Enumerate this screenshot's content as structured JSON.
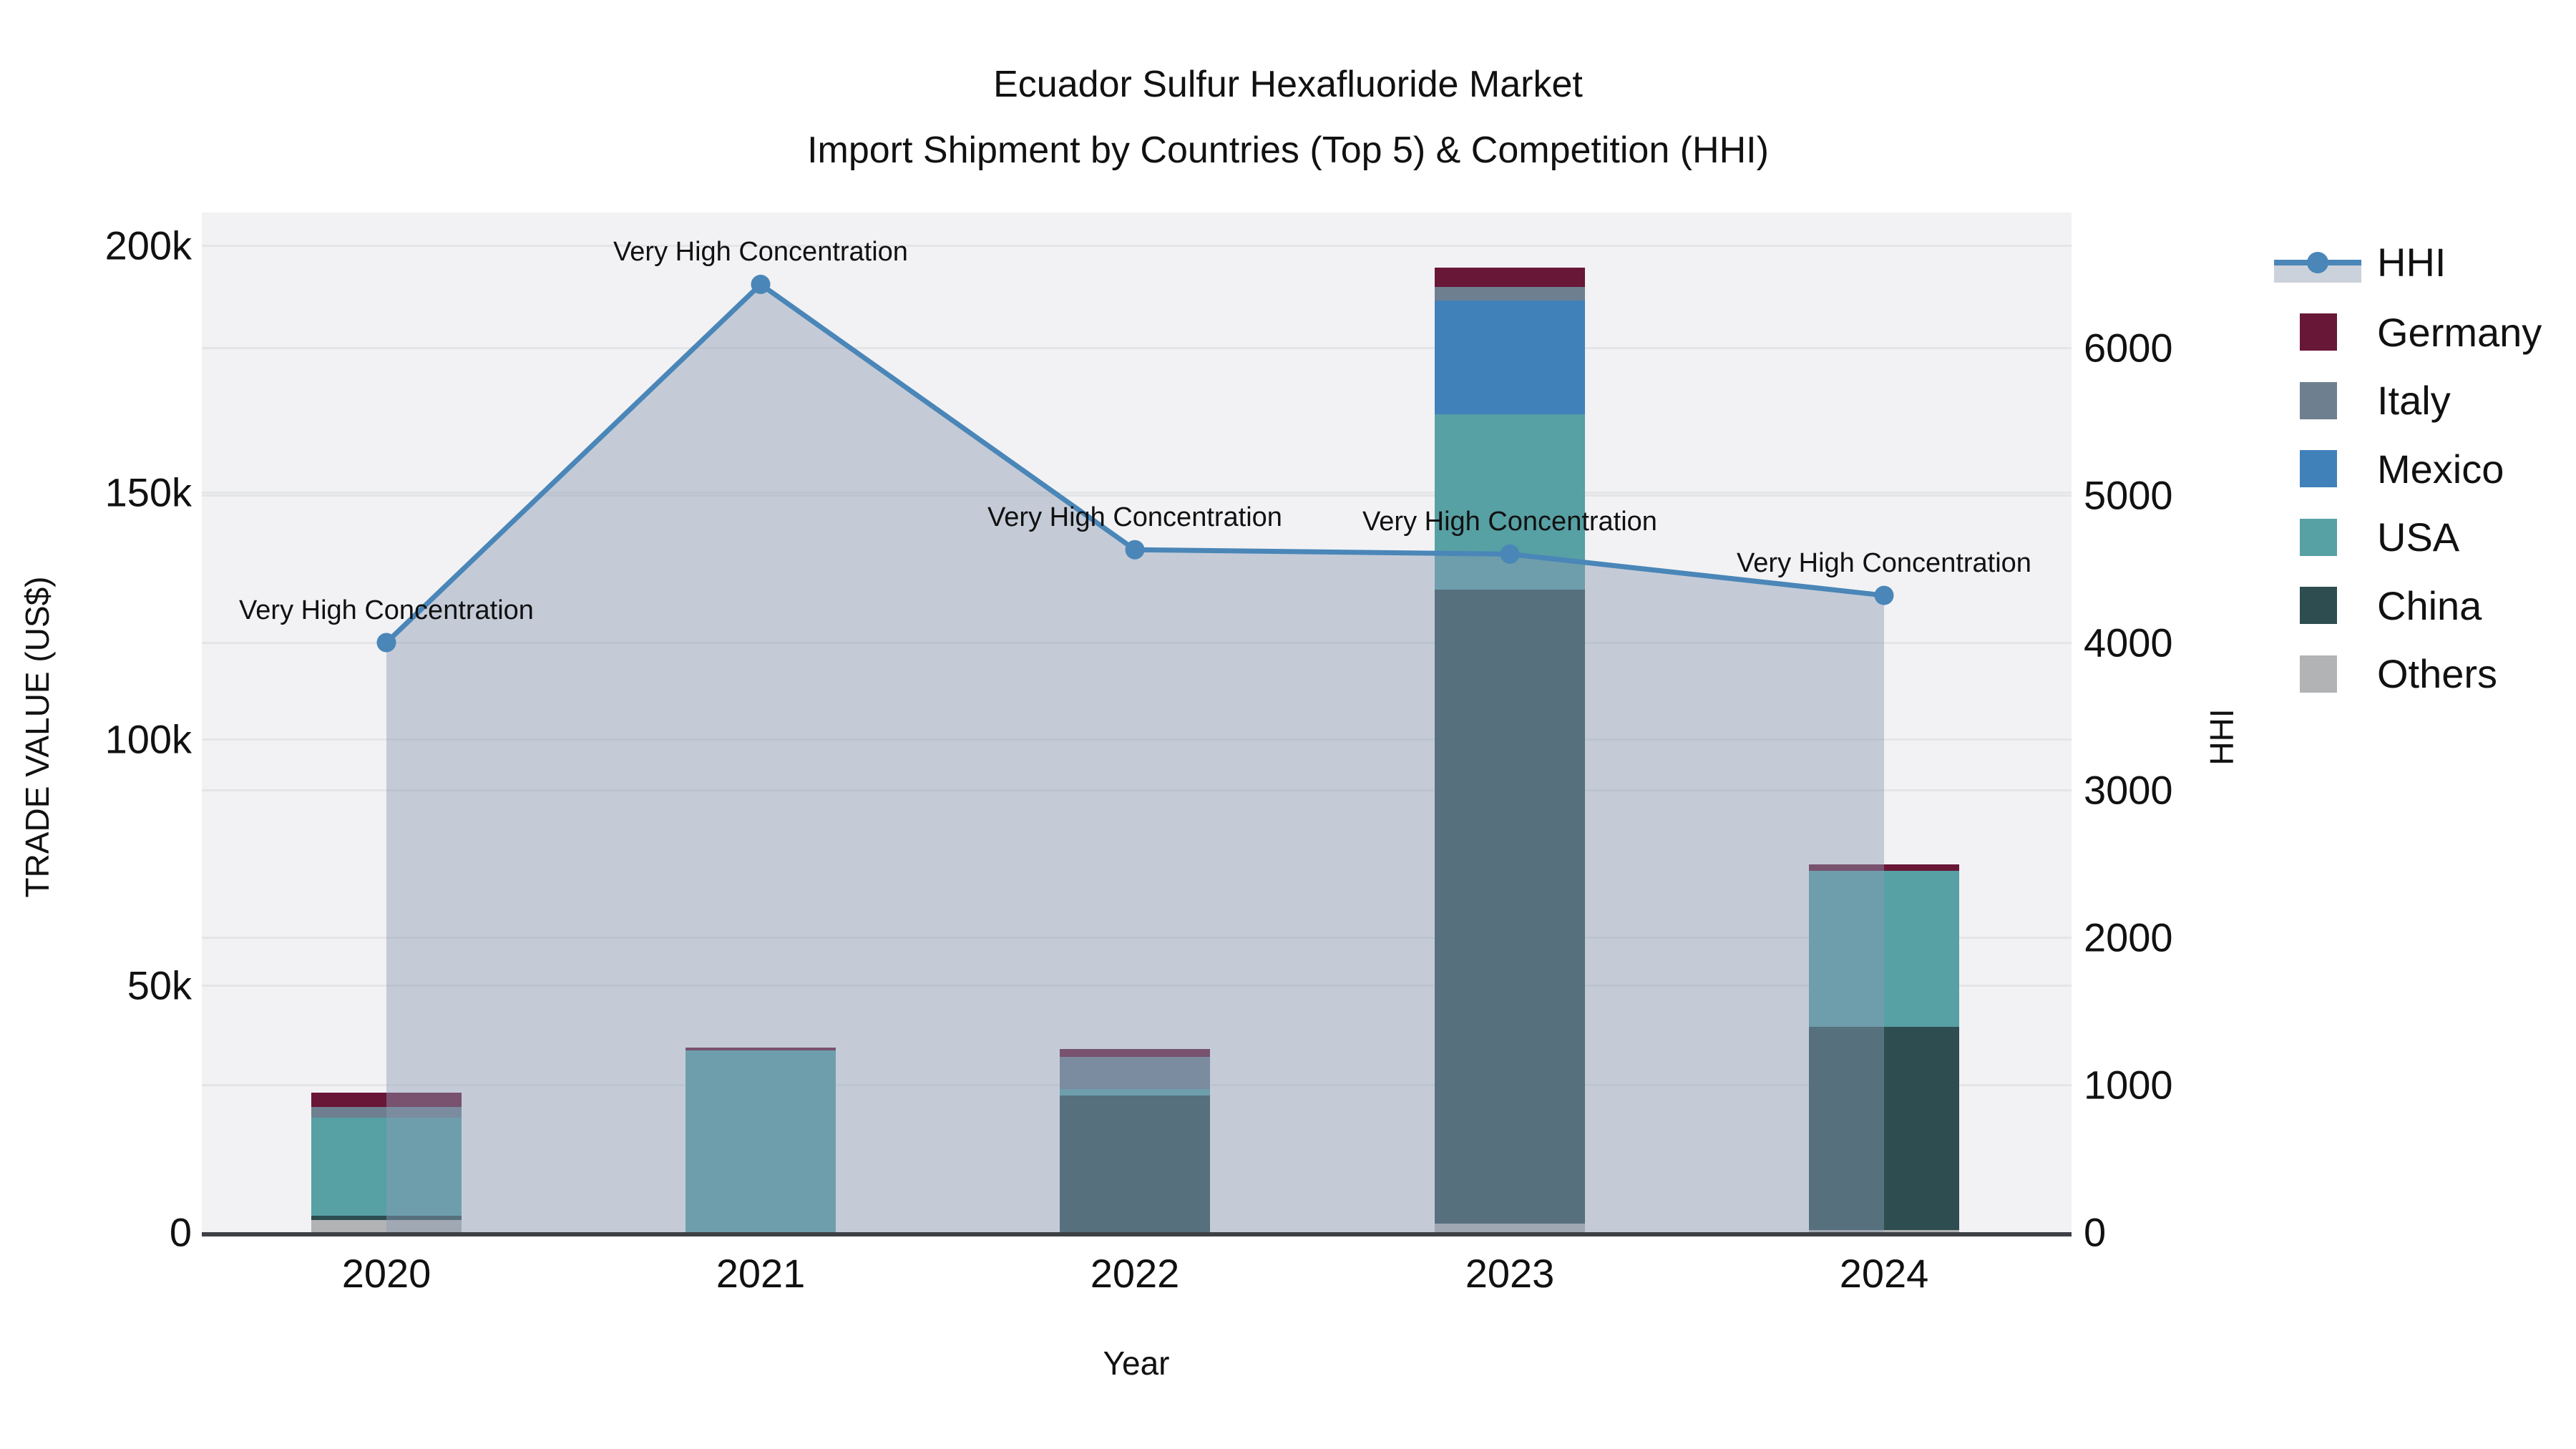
{
  "title": {
    "line1": "Ecuador Sulfur Hexafluoride Market",
    "line2": "Import Shipment by Countries (Top 5) & Competition (HHI)"
  },
  "axes": {
    "x_title": "Year",
    "y_left_title": "TRADE VALUE (US$)",
    "y_right_title": "HHI",
    "x_tick_labels": [
      "2020",
      "2021",
      "2022",
      "2023",
      "2024"
    ],
    "y_left_tick_labels": [
      "0",
      "50k",
      "100k",
      "150k",
      "200k"
    ],
    "y_left_tick_values": [
      0,
      50000,
      100000,
      150000,
      200000
    ],
    "y_right_tick_labels": [
      "0",
      "1000",
      "2000",
      "3000",
      "4000",
      "5000",
      "6000"
    ],
    "y_right_tick_values": [
      0,
      1000,
      2000,
      3000,
      4000,
      5000,
      6000
    ]
  },
  "chart_data": {
    "type": "bar",
    "subtype": "stacked-bars-with-line",
    "title": "Ecuador Sulfur Hexafluoride Market Import Shipment by Countries (Top 5) & Competition (HHI)",
    "xlabel": "Year",
    "ylabel_left": "TRADE VALUE (US$)",
    "ylabel_right": "HHI",
    "categories": [
      "2020",
      "2021",
      "2022",
      "2023",
      "2024"
    ],
    "ylim_left": [
      0,
      206000
    ],
    "ylim_right": [
      0,
      6900
    ],
    "grid": true,
    "legend_position": "right",
    "series": [
      {
        "name": "Others",
        "color": "#b1b3b5",
        "values": [
          2500,
          0,
          0,
          1700,
          500
        ]
      },
      {
        "name": "China",
        "color": "#2d4d50",
        "values": [
          900,
          0,
          27700,
          128600,
          41100
        ]
      },
      {
        "name": "USA",
        "color": "#57a0a4",
        "values": [
          19800,
          36800,
          1300,
          35500,
          31600
        ]
      },
      {
        "name": "Mexico",
        "color": "#4181ba",
        "values": [
          0,
          0,
          0,
          23100,
          0
        ]
      },
      {
        "name": "Italy",
        "color": "#6e8090",
        "values": [
          2200,
          0,
          6500,
          2700,
          0
        ]
      },
      {
        "name": "Germany",
        "color": "#681737",
        "values": [
          2900,
          600,
          1600,
          3900,
          1400
        ]
      }
    ],
    "bar_totals": [
      28300,
      37400,
      37100,
      195500,
      74600
    ],
    "line_series": {
      "name": "HHI",
      "axis": "right",
      "color": "#4a86b8",
      "area_fill": "rgba(139,156,180,0.45)",
      "values": [
        4000,
        6430,
        4630,
        4600,
        4320
      ]
    },
    "annotations": [
      {
        "text": "Very High Concentration",
        "x_index": 0
      },
      {
        "text": "Very High Concentration",
        "x_index": 1
      },
      {
        "text": "Very High Concentration",
        "x_index": 2
      },
      {
        "text": "Very High Concentration",
        "x_index": 3
      },
      {
        "text": "Very High Concentration",
        "x_index": 4
      }
    ]
  },
  "legend": {
    "items": [
      {
        "label": "HHI",
        "type": "line",
        "color": "#4a86b8"
      },
      {
        "label": "Germany",
        "type": "square",
        "color": "#681737"
      },
      {
        "label": "Italy",
        "type": "square",
        "color": "#6e8090"
      },
      {
        "label": "Mexico",
        "type": "square",
        "color": "#4181ba"
      },
      {
        "label": "USA",
        "type": "square",
        "color": "#57a0a4"
      },
      {
        "label": "China",
        "type": "square",
        "color": "#2d4d50"
      },
      {
        "label": "Others",
        "type": "square",
        "color": "#b1b3b5"
      }
    ]
  }
}
